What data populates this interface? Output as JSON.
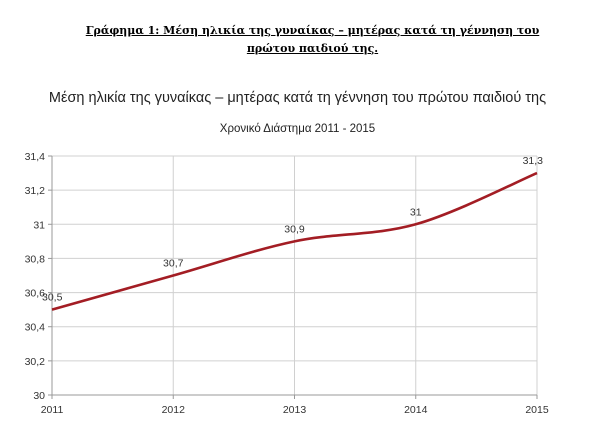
{
  "document": {
    "caption": "Γράφημα 1: Μέση ηλικία της γυναίκας – μητέρας κατά τη γέννηση του πρώτου παιδιού της."
  },
  "chart_data": {
    "type": "line",
    "title": "Μέση ηλικία της γυναίκας – μητέρας κατά τη γέννηση του πρώτου παιδιού της",
    "subtitle": "Χρονικό Διάστημα 2011 - 2015",
    "xlabel": "",
    "ylabel": "",
    "x": [
      "2011",
      "2012",
      "2013",
      "2014",
      "2015"
    ],
    "series": [
      {
        "values": [
          30.5,
          30.7,
          30.9,
          31.0,
          31.3
        ],
        "data_labels": [
          "30,5",
          "30,7",
          "30,9",
          "31",
          "31,3"
        ]
      }
    ],
    "ylim": [
      30,
      31.4
    ],
    "yticks": [
      30,
      30.2,
      30.4,
      30.6,
      30.8,
      31,
      31.2,
      31.4
    ],
    "ytick_labels": [
      "30",
      "30,2",
      "30,4",
      "30,6",
      "30,8",
      "31",
      "31,2",
      "31,4"
    ],
    "grid": true,
    "smooth": true,
    "line_color": "#a31d24",
    "grid_color": "#d0d0d0"
  }
}
